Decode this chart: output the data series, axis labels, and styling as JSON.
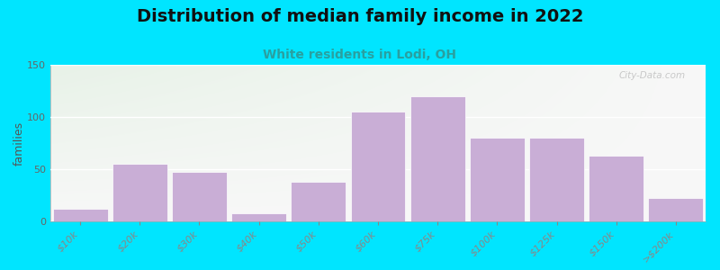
{
  "title": "Distribution of median family income in 2022",
  "subtitle": "White residents in Lodi, OH",
  "ylabel": "families",
  "categories": [
    "$10k",
    "$20k",
    "$30k",
    "$40k",
    "$50k",
    "$60k",
    "$75k",
    "$100k",
    "$125k",
    "$150k",
    ">$200k"
  ],
  "values": [
    12,
    55,
    47,
    8,
    38,
    105,
    120,
    80,
    80,
    63,
    22
  ],
  "bar_color": "#c9aed6",
  "bar_edgecolor": "#ffffff",
  "background_outer": "#00e5ff",
  "background_inner_left": "#ddeedd",
  "background_inner_right": "#f8f8f8",
  "title_fontsize": 14,
  "subtitle_fontsize": 10,
  "subtitle_color": "#29a0a0",
  "ylabel_fontsize": 9,
  "tick_fontsize": 8,
  "ylim": [
    0,
    150
  ],
  "yticks": [
    0,
    50,
    100,
    150
  ],
  "watermark_text": "City-Data.com",
  "watermark_color": "#c0c0c0"
}
